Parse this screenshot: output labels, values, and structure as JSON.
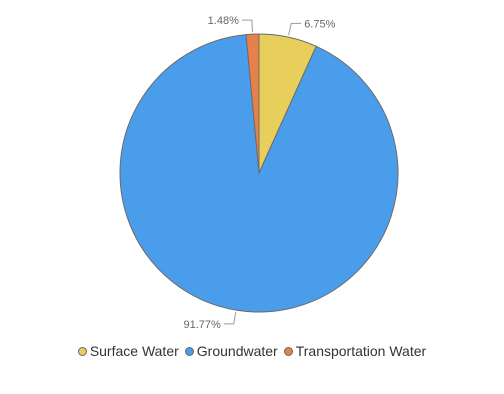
{
  "chart_data": {
    "type": "pie",
    "categories": [
      "Surface Water",
      "Groundwater",
      "Transportation Water"
    ],
    "values": [
      6.75,
      91.77,
      1.48
    ],
    "labels": [
      "6.75%",
      "91.77%",
      "1.48%"
    ],
    "colors": [
      "#E8CF5B",
      "#4A9DEB",
      "#E8804B"
    ],
    "legend": "bottom",
    "start_angle_deg": 0,
    "direction": "clockwise"
  }
}
